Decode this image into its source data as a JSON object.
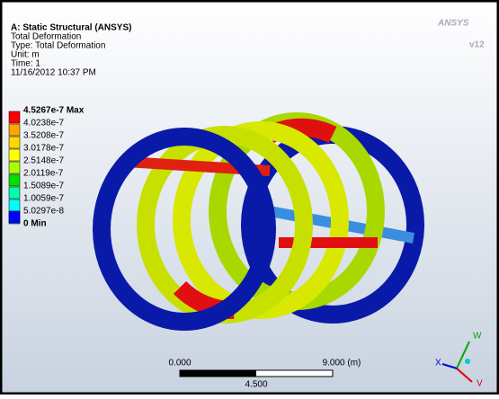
{
  "header": {
    "lines": [
      "A: Static Structural (ANSYS)",
      "Total Deformation",
      "Type: Total Deformation",
      "Unit: m",
      "Time: 1",
      "11/16/2012 10:37 PM"
    ]
  },
  "legend": {
    "items": [
      {
        "label": "4.5267e-7 Max",
        "color": "#ff0000"
      },
      {
        "label": "4.0238e-7",
        "color": "#ffa500"
      },
      {
        "label": "3.5208e-7",
        "color": "#ffd700"
      },
      {
        "label": "3.0178e-7",
        "color": "#ffff00"
      },
      {
        "label": "2.5148e-7",
        "color": "#aaff00"
      },
      {
        "label": "2.0119e-7",
        "color": "#00e000"
      },
      {
        "label": "1.5089e-7",
        "color": "#00ffaa"
      },
      {
        "label": "1.0059e-7",
        "color": "#00ffff"
      },
      {
        "label": "5.0297e-8",
        "color": "#00aaff"
      },
      {
        "label": "0 Min",
        "color": "#0000ff"
      }
    ]
  },
  "scale": {
    "left": "0.000",
    "right": "9.000 (m)",
    "middle": "4.500"
  },
  "triad": {
    "w": "W",
    "x": "X",
    "v": "V"
  },
  "logo": {
    "name": "ANSYS",
    "version": "v12"
  }
}
